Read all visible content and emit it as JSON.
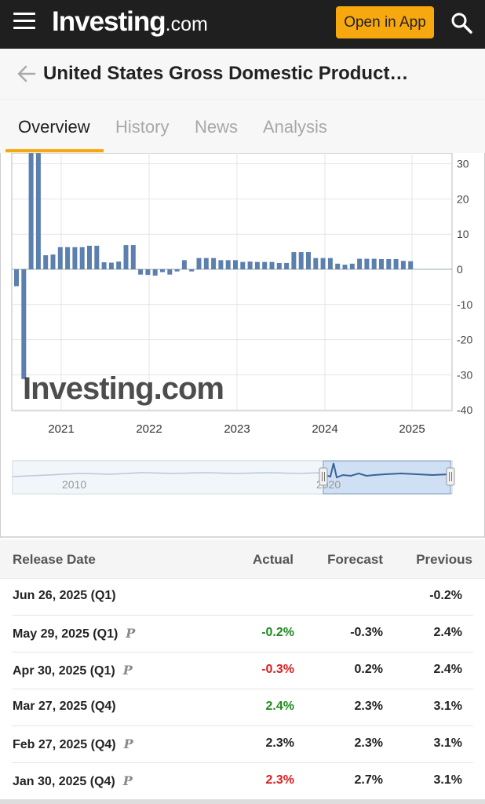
{
  "header": {
    "logo_main": "Investing",
    "logo_suffix": ".com",
    "open_app_label": "Open in App"
  },
  "title": "United States Gross Domestic Product…",
  "tabs": [
    "Overview",
    "History",
    "News",
    "Analysis"
  ],
  "active_tab": "Overview",
  "chart_data": {
    "type": "bar",
    "yticks": [
      30,
      20,
      10,
      0,
      -10,
      -20,
      -30,
      -40
    ],
    "ylim": [
      -40,
      33
    ],
    "xlabels": [
      "2021",
      "2022",
      "2023",
      "2024",
      "2025"
    ],
    "watermark": "Investing.com",
    "bar_color": "#5b7fae",
    "series": [
      {
        "values": [
          -4.8,
          -31.2,
          33.0,
          33.0,
          4.0,
          4.2,
          6.3,
          6.3,
          6.3,
          6.3,
          6.7,
          6.7,
          2.0,
          1.9,
          2.2,
          6.9,
          6.9,
          -1.5,
          -1.6,
          -1.8,
          -0.8,
          -1.5,
          -0.6,
          2.6,
          -0.6,
          3.2,
          3.2,
          3.2,
          2.6,
          2.6,
          2.6,
          2.1,
          2.2,
          2.1,
          2.1,
          2.1,
          1.8,
          1.8,
          4.9,
          4.9,
          4.9,
          3.2,
          3.2,
          3.2,
          1.6,
          1.3,
          1.6,
          3.0,
          3.0,
          3.0,
          2.9,
          2.9,
          2.9,
          2.4,
          2.3
        ]
      }
    ],
    "navigator_labels": [
      "2010",
      "2020"
    ]
  },
  "table": {
    "headers": {
      "date": "Release Date",
      "actual": "Actual",
      "forecast": "Forecast",
      "previous": "Previous"
    },
    "rows": [
      {
        "date": "Jun 26, 2025 (Q1)",
        "pre": "",
        "actual": "",
        "actual_color": "black",
        "forecast": "",
        "previous": "-0.2%"
      },
      {
        "date": "May 29, 2025 (Q1)",
        "pre": "P",
        "actual": "-0.2%",
        "actual_color": "green",
        "forecast": "-0.3%",
        "previous": "2.4%"
      },
      {
        "date": "Apr 30, 2025 (Q1)",
        "pre": "P",
        "actual": "-0.3%",
        "actual_color": "red",
        "forecast": "0.2%",
        "previous": "2.4%"
      },
      {
        "date": "Mar 27, 2025 (Q4)",
        "pre": "",
        "actual": "2.4%",
        "actual_color": "green",
        "forecast": "2.3%",
        "previous": "3.1%"
      },
      {
        "date": "Feb 27, 2025 (Q4)",
        "pre": "P",
        "actual": "2.3%",
        "actual_color": "black",
        "forecast": "2.3%",
        "previous": "3.1%"
      },
      {
        "date": "Jan 30, 2025 (Q4)",
        "pre": "P",
        "actual": "2.3%",
        "actual_color": "red",
        "forecast": "2.7%",
        "previous": "3.1%"
      }
    ]
  },
  "colors": {
    "accent": "#f7a80f",
    "topbar": "#1f1f1f",
    "up": "#1e8a1e",
    "down": "#d91e1e"
  }
}
